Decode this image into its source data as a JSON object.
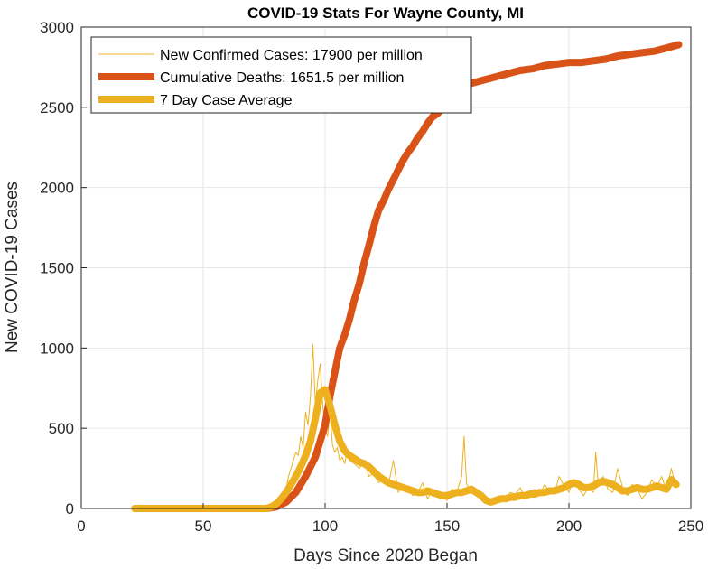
{
  "chart_data": {
    "type": "line",
    "title": "COVID-19 Stats For Wayne County, MI",
    "xlabel": "Days Since 2020 Began",
    "ylabel": "New COVID-19 Cases",
    "xlim": [
      0,
      250
    ],
    "ylim": [
      0,
      3000
    ],
    "xticks": [
      "0",
      "50",
      "100",
      "150",
      "200",
      "250"
    ],
    "yticks": [
      "0",
      "500",
      "1000",
      "1500",
      "2000",
      "2500",
      "3000"
    ],
    "grid": true,
    "legend_position": "top-left",
    "series": [
      {
        "name": "New Confirmed Cases: 17900 per million",
        "color": "#EDB120",
        "style": "thin",
        "x": [
          22,
          30,
          40,
          50,
          60,
          70,
          76,
          78,
          80,
          82,
          84,
          85,
          86,
          87,
          88,
          89,
          90,
          91,
          92,
          93,
          94,
          95,
          96,
          97,
          98,
          99,
          100,
          101,
          102,
          103,
          104,
          105,
          106,
          107,
          108,
          109,
          110,
          112,
          114,
          116,
          118,
          120,
          122,
          124,
          126,
          128,
          130,
          132,
          134,
          136,
          138,
          140,
          142,
          144,
          146,
          148,
          150,
          152,
          154,
          156,
          157,
          158,
          160,
          162,
          164,
          166,
          168,
          170,
          172,
          174,
          176,
          178,
          180,
          182,
          184,
          186,
          188,
          190,
          192,
          194,
          196,
          198,
          200,
          202,
          204,
          206,
          208,
          210,
          211,
          212,
          214,
          216,
          218,
          220,
          222,
          224,
          226,
          228,
          230,
          232,
          234,
          236,
          238,
          240,
          242,
          244
        ],
        "y": [
          0,
          0,
          0,
          0,
          0,
          0,
          0,
          20,
          40,
          80,
          120,
          200,
          250,
          300,
          350,
          330,
          450,
          380,
          600,
          520,
          700,
          1020,
          650,
          800,
          900,
          650,
          500,
          450,
          600,
          400,
          350,
          380,
          300,
          320,
          280,
          350,
          300,
          280,
          250,
          300,
          200,
          220,
          160,
          180,
          150,
          300,
          100,
          150,
          120,
          80,
          100,
          160,
          60,
          120,
          100,
          80,
          50,
          120,
          100,
          200,
          450,
          150,
          120,
          100,
          60,
          30,
          50,
          40,
          80,
          60,
          100,
          90,
          130,
          70,
          100,
          120,
          80,
          150,
          110,
          90,
          200,
          140,
          100,
          180,
          120,
          80,
          130,
          100,
          350,
          150,
          200,
          120,
          100,
          250,
          130,
          80,
          150,
          120,
          60,
          100,
          180,
          130,
          200,
          110,
          250,
          130
        ]
      },
      {
        "name": "Cumulative Deaths: 1651.5 per million",
        "color": "#D95319",
        "style": "thick",
        "x": [
          22,
          40,
          60,
          76,
          80,
          84,
          88,
          92,
          96,
          100,
          102,
          104,
          106,
          108,
          110,
          112,
          114,
          116,
          118,
          120,
          122,
          124,
          126,
          128,
          130,
          132,
          134,
          136,
          138,
          140,
          142,
          144,
          146,
          148,
          150,
          152,
          154,
          156,
          158,
          160,
          165,
          170,
          175,
          180,
          185,
          190,
          195,
          200,
          205,
          210,
          215,
          220,
          225,
          230,
          235,
          240,
          245
        ],
        "y": [
          0,
          0,
          0,
          0,
          10,
          40,
          100,
          200,
          320,
          520,
          700,
          850,
          1000,
          1080,
          1180,
          1300,
          1400,
          1530,
          1640,
          1760,
          1860,
          1920,
          1990,
          2050,
          2110,
          2170,
          2220,
          2260,
          2310,
          2350,
          2400,
          2440,
          2460,
          2490,
          2520,
          2560,
          2590,
          2610,
          2630,
          2650,
          2670,
          2690,
          2710,
          2730,
          2740,
          2760,
          2770,
          2780,
          2780,
          2790,
          2800,
          2820,
          2830,
          2840,
          2850,
          2870,
          2890
        ]
      },
      {
        "name": "7 Day Case Average",
        "color": "#EDB120",
        "style": "thick",
        "x": [
          22,
          40,
          60,
          76,
          78,
          80,
          82,
          84,
          86,
          88,
          90,
          92,
          94,
          96,
          98,
          100,
          102,
          104,
          106,
          108,
          110,
          112,
          114,
          116,
          118,
          120,
          122,
          124,
          126,
          128,
          130,
          132,
          134,
          136,
          138,
          140,
          142,
          144,
          146,
          148,
          150,
          152,
          154,
          156,
          158,
          160,
          162,
          164,
          166,
          168,
          170,
          172,
          174,
          176,
          178,
          180,
          182,
          184,
          186,
          188,
          190,
          192,
          194,
          196,
          198,
          200,
          202,
          204,
          206,
          208,
          210,
          212,
          214,
          216,
          218,
          220,
          222,
          224,
          226,
          228,
          230,
          232,
          234,
          236,
          238,
          240,
          242,
          244
        ],
        "y": [
          0,
          0,
          0,
          0,
          10,
          30,
          60,
          100,
          150,
          200,
          260,
          330,
          420,
          560,
          720,
          740,
          640,
          520,
          420,
          360,
          330,
          310,
          290,
          280,
          260,
          230,
          200,
          180,
          160,
          150,
          140,
          130,
          120,
          110,
          100,
          100,
          110,
          100,
          90,
          80,
          80,
          90,
          100,
          100,
          110,
          120,
          100,
          80,
          50,
          40,
          50,
          60,
          60,
          70,
          70,
          80,
          80,
          90,
          90,
          100,
          100,
          110,
          110,
          120,
          130,
          150,
          160,
          150,
          130,
          130,
          140,
          160,
          170,
          160,
          150,
          130,
          110,
          110,
          120,
          130,
          120,
          120,
          130,
          140,
          130,
          120,
          180,
          150
        ]
      }
    ]
  }
}
